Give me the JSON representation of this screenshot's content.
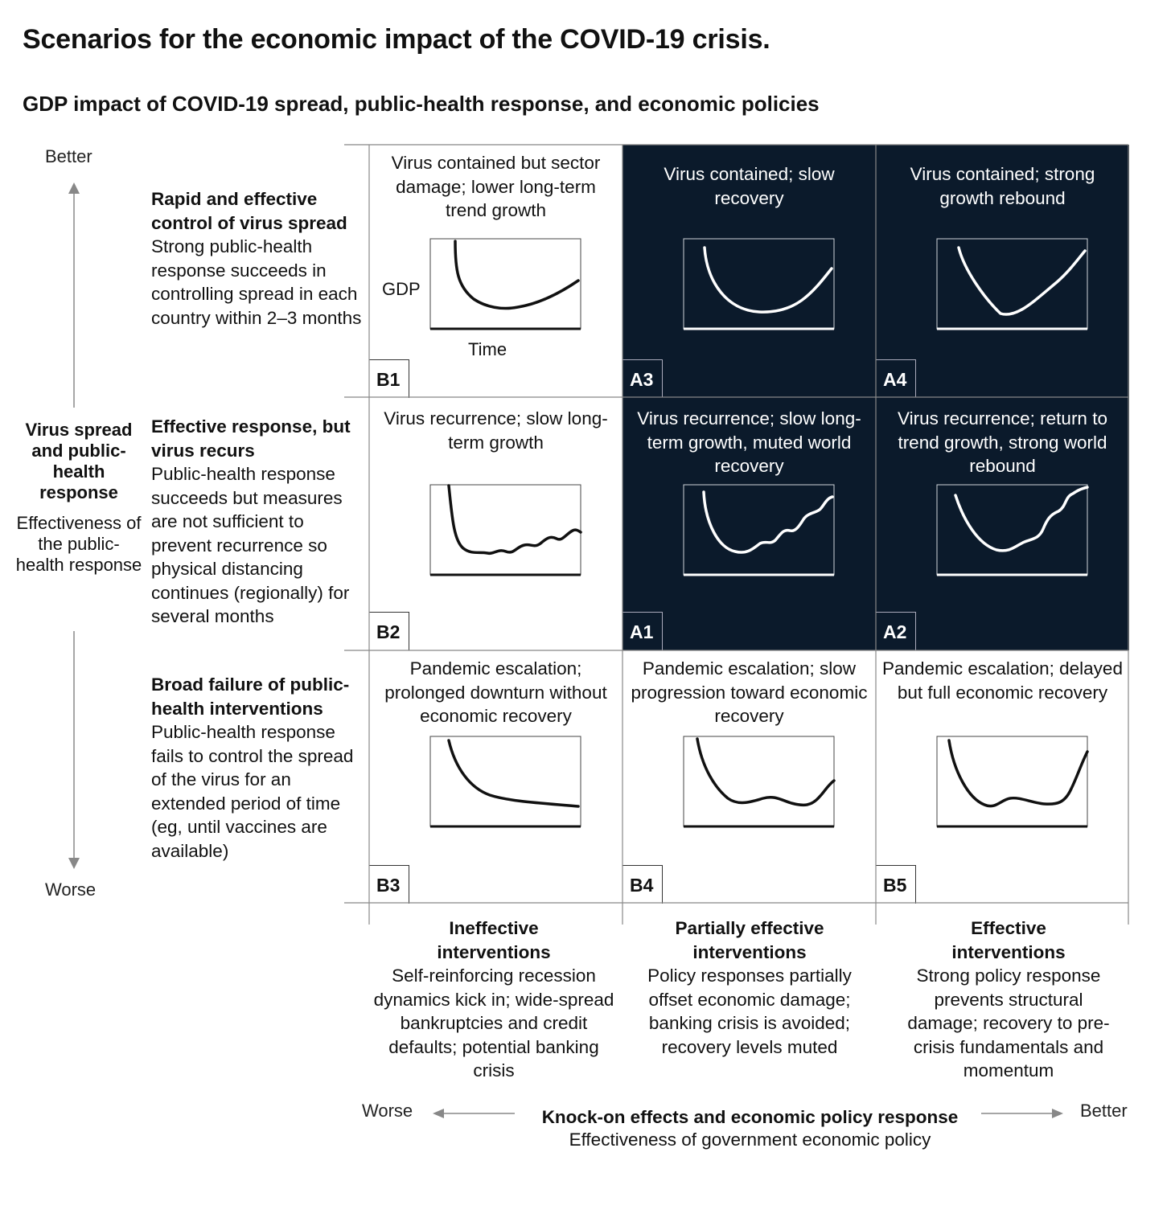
{
  "title": "Scenarios for the economic impact of the COVID-19 crisis.",
  "subtitle": "GDP impact of COVID-19 spread, public-health response, and economic policies",
  "vertical_axis": {
    "top_label": "Better",
    "bottom_label": "Worse",
    "title": "Virus spread and public-health response",
    "subtitle": "Effectiveness of the public-health response"
  },
  "horizontal_axis": {
    "left_label": "Worse",
    "right_label": "Better",
    "title": "Knock-on effects and economic policy response",
    "subtitle": "Effectiveness of government economic policy"
  },
  "rows": [
    {
      "heading": "Rapid and effective control of virus spread",
      "body": "Strong public-health response succeeds in controlling spread in each country within 2–3 months"
    },
    {
      "heading": "Effective response, but virus recurs",
      "body": "Public-health response succeeds but measures are not sufficient to prevent recurrence so physical distancing continues (regionally) for several months"
    },
    {
      "heading": "Broad failure of public-health interventions",
      "body": "Public-health response fails to control the spread of the virus for an extended period of time (eg, until vaccines are available)"
    }
  ],
  "columns": [
    {
      "heading": "Ineffective interventions",
      "body": "Self-reinforcing recession dynamics kick in; wide-spread bankruptcies and credit defaults; potential banking crisis"
    },
    {
      "heading": "Partially effective interventions",
      "body": "Policy responses partially offset economic damage; banking crisis is avoided; recovery levels muted"
    },
    {
      "heading": "Effective interventions",
      "body": "Strong policy response prevents structural damage; recovery to pre-crisis fundamentals and momentum"
    }
  ],
  "mini_axis_labels": {
    "y": "GDP",
    "x": "Time"
  },
  "cells": [
    {
      "code": "B1",
      "caption": "Virus contained but sector damage; lower long-term trend growth",
      "dark": false
    },
    {
      "code": "A3",
      "caption": "Virus contained; slow recovery",
      "dark": true
    },
    {
      "code": "A4",
      "caption": "Virus contained; strong growth rebound",
      "dark": true
    },
    {
      "code": "B2",
      "caption": "Virus recurrence; slow long-term growth",
      "dark": false
    },
    {
      "code": "A1",
      "caption": "Virus recurrence; slow long-term growth, muted world recovery",
      "dark": true
    },
    {
      "code": "A2",
      "caption": "Virus recurrence; return to trend growth, strong world rebound",
      "dark": true
    },
    {
      "code": "B3",
      "caption": "Pandemic escalation; prolonged downturn without economic recovery",
      "dark": false
    },
    {
      "code": "B4",
      "caption": "Pandemic escalation; slow progression toward economic recovery",
      "dark": false
    },
    {
      "code": "B5",
      "caption": "Pandemic escalation; delayed but full economic recovery",
      "dark": false
    }
  ],
  "colors": {
    "dark_cell": "#0b1a2b",
    "line": "#111111",
    "axis_arrow": "#888888"
  }
}
